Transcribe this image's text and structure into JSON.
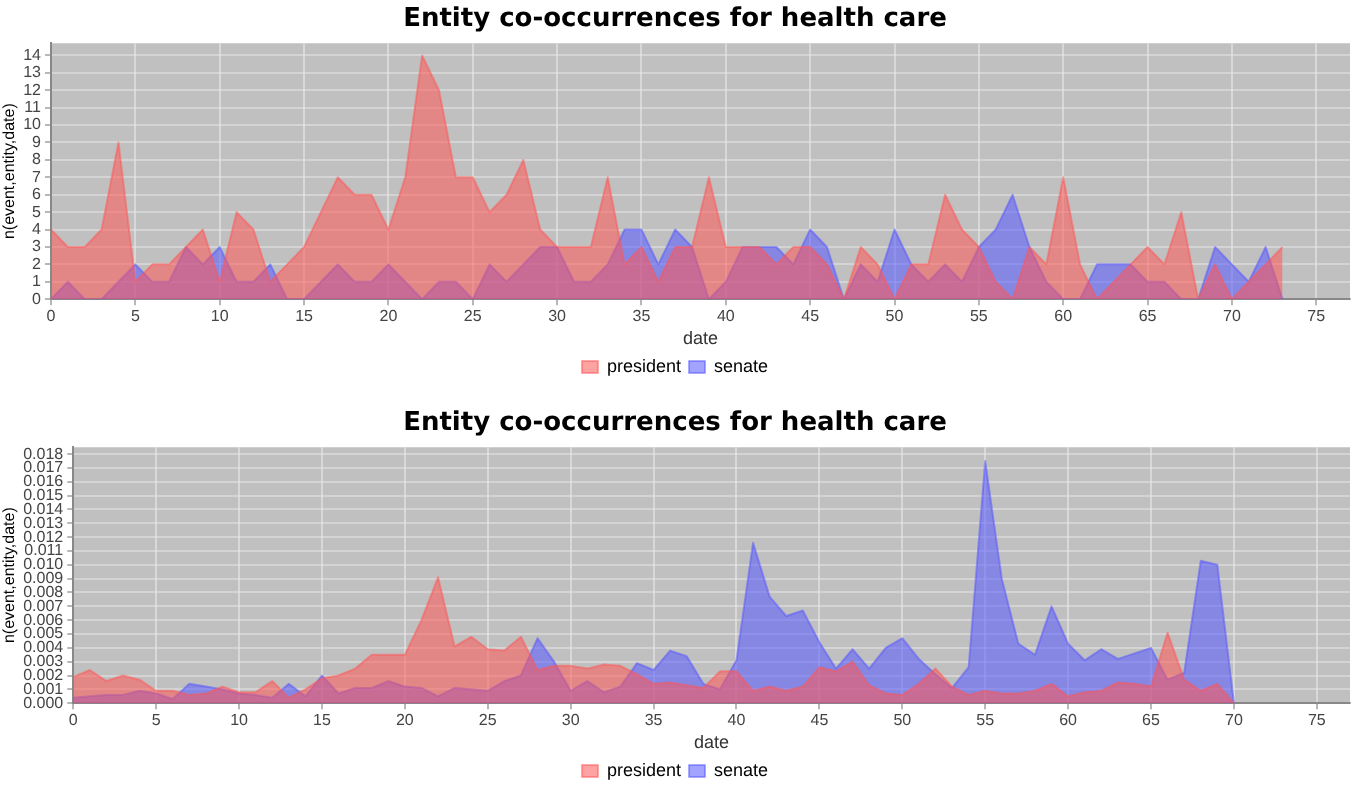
{
  "chart_data": [
    {
      "type": "area",
      "title": "Entity co-occurrences for health care",
      "xlabel": "date",
      "ylabel": "n(event,entity,date)",
      "x": [
        0,
        1,
        2,
        3,
        4,
        5,
        6,
        7,
        8,
        9,
        10,
        11,
        12,
        13,
        14,
        15,
        16,
        17,
        18,
        19,
        20,
        21,
        22,
        23,
        24,
        25,
        26,
        27,
        28,
        29,
        30,
        31,
        32,
        33,
        34,
        35,
        36,
        37,
        38,
        39,
        40,
        41,
        42,
        43,
        44,
        45,
        46,
        47,
        48,
        49,
        50,
        51,
        52,
        53,
        54,
        55,
        56,
        57,
        58,
        59,
        60,
        61,
        62,
        63,
        64,
        65,
        66,
        67,
        68,
        69,
        70,
        71,
        72,
        73
      ],
      "series": [
        {
          "name": "president",
          "color": "#ff5555",
          "values": [
            4,
            3,
            3,
            4,
            9,
            1,
            2,
            2,
            3,
            4,
            1,
            5,
            4,
            1,
            2,
            3,
            5,
            7,
            6,
            6,
            4,
            7,
            14,
            12,
            7,
            7,
            5,
            6,
            8,
            4,
            3,
            3,
            3,
            7,
            2,
            3,
            1,
            3,
            3,
            7,
            3,
            3,
            3,
            2,
            3,
            3,
            2,
            0,
            3,
            2,
            0,
            2,
            2,
            6,
            4,
            3,
            1,
            0,
            3,
            2,
            7,
            2,
            0,
            1,
            2,
            3,
            2,
            5,
            0,
            2,
            0,
            1,
            2,
            3
          ]
        },
        {
          "name": "senate",
          "color": "#5555ff",
          "values": [
            0,
            1,
            0,
            0,
            1,
            2,
            1,
            1,
            3,
            2,
            3,
            1,
            1,
            2,
            0,
            0,
            1,
            2,
            1,
            1,
            2,
            1,
            0,
            1,
            1,
            0,
            2,
            1,
            2,
            3,
            3,
            1,
            1,
            2,
            4,
            4,
            2,
            4,
            3,
            0,
            1,
            3,
            3,
            3,
            2,
            4,
            3,
            0,
            2,
            1,
            4,
            2,
            1,
            2,
            1,
            3,
            4,
            6,
            3,
            1,
            0,
            0,
            2,
            2,
            2,
            1,
            1,
            0,
            0,
            3,
            2,
            1,
            3,
            0
          ]
        }
      ],
      "xlim": [
        0,
        77
      ],
      "xticks": [
        0,
        5,
        10,
        15,
        20,
        25,
        30,
        35,
        40,
        45,
        50,
        55,
        60,
        65,
        70,
        75
      ],
      "ylim": [
        0,
        14.7
      ],
      "yticks": [
        0,
        1,
        2,
        3,
        4,
        5,
        6,
        7,
        8,
        9,
        10,
        11,
        12,
        13,
        14
      ],
      "grid": true,
      "legend": "bottom",
      "marker": "none"
    },
    {
      "type": "area",
      "title": "Entity co-occurrences for health care",
      "xlabel": "date",
      "ylabel": "n(event,entity,date)",
      "x": [
        0,
        1,
        2,
        3,
        4,
        5,
        6,
        7,
        8,
        9,
        10,
        11,
        12,
        13,
        14,
        15,
        16,
        17,
        18,
        19,
        20,
        21,
        22,
        23,
        24,
        25,
        26,
        27,
        28,
        29,
        30,
        31,
        32,
        33,
        34,
        35,
        36,
        37,
        38,
        39,
        40,
        41,
        42,
        43,
        44,
        45,
        46,
        47,
        48,
        49,
        50,
        51,
        52,
        53,
        54,
        55,
        56,
        57,
        58,
        59,
        60,
        61,
        62,
        63,
        64,
        65,
        66,
        67,
        68,
        69,
        70
      ],
      "series": [
        {
          "name": "president",
          "color": "#ff5555",
          "values": [
            0.0019,
            0.0024,
            0.0016,
            0.002,
            0.0017,
            0.0009,
            0.0009,
            0.0006,
            0.0007,
            0.0012,
            0.0008,
            0.0008,
            0.0016,
            0.0004,
            0.001,
            0.0018,
            0.002,
            0.0025,
            0.0035,
            0.0035,
            0.0035,
            0.006,
            0.0091,
            0.0041,
            0.0048,
            0.0039,
            0.0038,
            0.0048,
            0.0024,
            0.0027,
            0.0027,
            0.0025,
            0.0028,
            0.0027,
            0.0021,
            0.0014,
            0.0015,
            0.0013,
            0.0011,
            0.0023,
            0.0023,
            0.0009,
            0.0012,
            0.0009,
            0.0012,
            0.0026,
            0.0023,
            0.003,
            0.0013,
            0.0007,
            0.0006,
            0.0014,
            0.0025,
            0.0012,
            0.0006,
            0.0009,
            0.0007,
            0.0007,
            0.0009,
            0.0014,
            0.0005,
            0.0008,
            0.0009,
            0.0015,
            0.0014,
            0.0012,
            0.0051,
            0.0017,
            0.0009,
            0.0014,
            0
          ]
        },
        {
          "name": "senate",
          "color": "#5555ff",
          "values": [
            0.0004,
            0.0005,
            0.0006,
            0.0006,
            0.0009,
            0.0007,
            0.0003,
            0.0014,
            0.0012,
            0.001,
            0.0007,
            0.0006,
            0.0004,
            0.0014,
            0.0005,
            0.002,
            0.0007,
            0.0011,
            0.0011,
            0.0016,
            0.0012,
            0.0011,
            0.0005,
            0.0011,
            0.001,
            0.0009,
            0.0016,
            0.002,
            0.0047,
            0.003,
            0.0009,
            0.0016,
            0.0008,
            0.0012,
            0.0029,
            0.0024,
            0.0038,
            0.0034,
            0.0014,
            0.001,
            0.0031,
            0.0116,
            0.0077,
            0.0063,
            0.0067,
            0.0044,
            0.0025,
            0.0039,
            0.0025,
            0.004,
            0.0047,
            0.0032,
            0.0021,
            0.0011,
            0.0026,
            0.0175,
            0.009,
            0.0043,
            0.0035,
            0.007,
            0.0043,
            0.0031,
            0.0039,
            0.0032,
            0.0036,
            0.004,
            0.0017,
            0.0022,
            0.0103,
            0.01,
            0
          ]
        }
      ],
      "xlim": [
        0,
        77
      ],
      "xticks": [
        0,
        5,
        10,
        15,
        20,
        25,
        30,
        35,
        40,
        45,
        50,
        55,
        60,
        65,
        70,
        75
      ],
      "ylim": [
        0,
        0.0185
      ],
      "yticks": [
        {
          "value": 0,
          "label": "0.000"
        },
        {
          "value": 0.001,
          "label": "0.001"
        },
        {
          "value": 0.002,
          "label": "0.002"
        },
        {
          "value": 0.003,
          "label": "0.003"
        },
        {
          "value": 0.004,
          "label": "0.004"
        },
        {
          "value": 0.005,
          "label": "0.005"
        },
        {
          "value": 0.006,
          "label": "0.006"
        },
        {
          "value": 0.007,
          "label": "0.007"
        },
        {
          "value": 0.008,
          "label": "0.008"
        },
        {
          "value": 0.009,
          "label": "0.009"
        },
        {
          "value": 0.01,
          "label": "0.010"
        },
        {
          "value": 0.011,
          "label": "0.011"
        },
        {
          "value": 0.012,
          "label": "0.012"
        },
        {
          "value": 0.013,
          "label": "0.013"
        },
        {
          "value": 0.014,
          "label": "0.014"
        },
        {
          "value": 0.015,
          "label": "0.015"
        },
        {
          "value": 0.016,
          "label": "0.016"
        },
        {
          "value": 0.017,
          "label": "0.017"
        },
        {
          "value": 0.018,
          "label": "0.018"
        }
      ],
      "grid": true,
      "legend": "bottom",
      "marker": "none"
    }
  ]
}
